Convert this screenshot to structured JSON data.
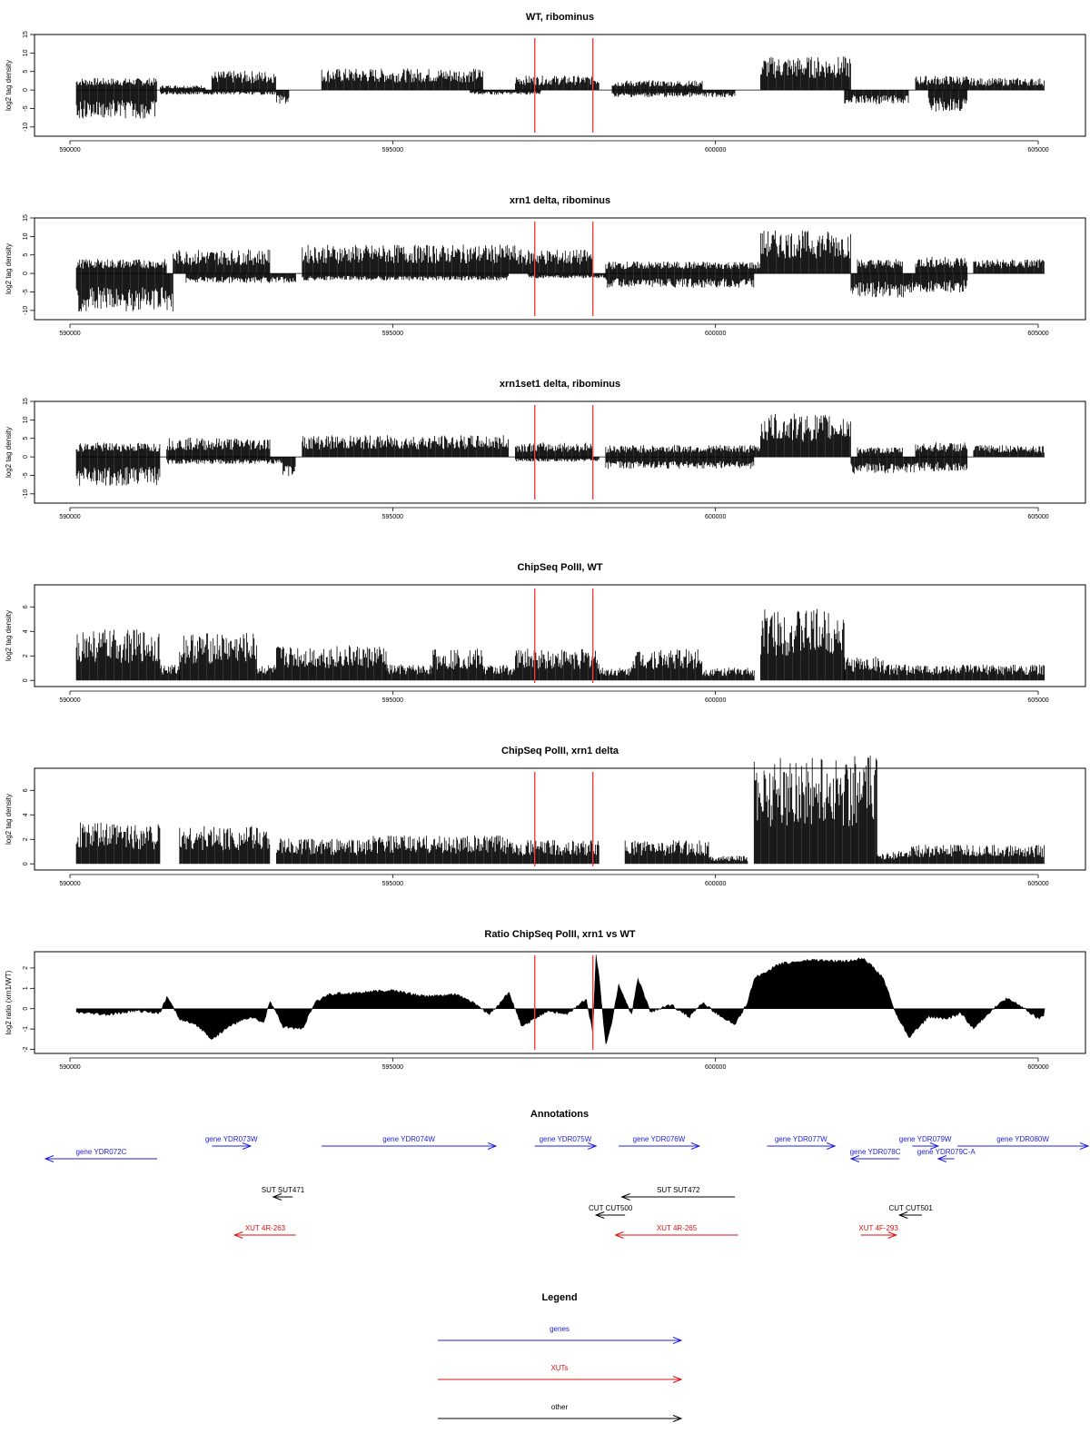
{
  "chart_data": [
    {
      "type": "bar",
      "title": "WT, ribominus",
      "ylabel": "log2 tag density",
      "ylim": [
        -12.5,
        15
      ],
      "yticks": [
        -10,
        -5,
        0,
        5,
        10,
        15
      ],
      "xlim": [
        590000,
        605000
      ],
      "xticks": [
        "590000",
        "595000",
        "600000",
        "605000"
      ],
      "markers": [
        597200,
        598100
      ],
      "forward": [
        {
          "from": 590100,
          "to": 591350,
          "level": 2.5
        },
        {
          "from": 591400,
          "to": 592100,
          "level": 1
        },
        {
          "from": 592200,
          "to": 593200,
          "level": 4
        },
        {
          "from": 593900,
          "to": 596400,
          "level": 4.5
        },
        {
          "from": 596900,
          "to": 598200,
          "level": 3
        },
        {
          "from": 598400,
          "to": 599800,
          "level": 2
        },
        {
          "from": 600700,
          "to": 602100,
          "level": 7
        },
        {
          "from": 603100,
          "to": 603900,
          "level": 3
        },
        {
          "from": 603900,
          "to": 605100,
          "level": 2.5
        }
      ],
      "reverse": [
        {
          "from": 590100,
          "to": 591350,
          "level": -6
        },
        {
          "from": 591400,
          "to": 593200,
          "level": -1
        },
        {
          "from": 593200,
          "to": 593400,
          "level": -3
        },
        {
          "from": 596200,
          "to": 597300,
          "level": -1
        },
        {
          "from": 598400,
          "to": 600300,
          "level": -1.5
        },
        {
          "from": 602000,
          "to": 603000,
          "level": -3
        },
        {
          "from": 603300,
          "to": 603900,
          "level": -4.5
        }
      ]
    },
    {
      "type": "bar",
      "title": "xrn1 delta, ribominus",
      "ylabel": "log2 tag density",
      "ylim": [
        -12.5,
        15
      ],
      "yticks": [
        -10,
        -5,
        0,
        5,
        10,
        15
      ],
      "xlim": [
        590000,
        605000
      ],
      "xticks": [
        "590000",
        "595000",
        "600000",
        "605000"
      ],
      "markers": [
        597200,
        598100
      ],
      "forward": [
        {
          "from": 590100,
          "to": 591500,
          "level": 3
        },
        {
          "from": 591600,
          "to": 593100,
          "level": 5
        },
        {
          "from": 593600,
          "to": 596900,
          "level": 6
        },
        {
          "from": 596900,
          "to": 598100,
          "level": 5
        },
        {
          "from": 598300,
          "to": 600700,
          "level": 2.5
        },
        {
          "from": 600700,
          "to": 602100,
          "level": 9
        },
        {
          "from": 602200,
          "to": 602900,
          "level": 3
        },
        {
          "from": 603100,
          "to": 603900,
          "level": 3.5
        },
        {
          "from": 604000,
          "to": 605100,
          "level": 3
        }
      ],
      "reverse": [
        {
          "from": 590100,
          "to": 591600,
          "level": -8
        },
        {
          "from": 591800,
          "to": 593500,
          "level": -2
        },
        {
          "from": 593600,
          "to": 596800,
          "level": -1.5
        },
        {
          "from": 597100,
          "to": 598300,
          "level": -1
        },
        {
          "from": 598300,
          "to": 600600,
          "level": -3
        },
        {
          "from": 602100,
          "to": 603000,
          "level": -5
        },
        {
          "from": 603000,
          "to": 603900,
          "level": -4
        }
      ]
    },
    {
      "type": "bar",
      "title": "xrn1set1 delta, ribominus",
      "ylabel": "log2 tag density",
      "ylim": [
        -12.5,
        15
      ],
      "yticks": [
        -10,
        -5,
        0,
        5,
        10,
        15
      ],
      "xlim": [
        590000,
        605000
      ],
      "xticks": [
        "590000",
        "595000",
        "600000",
        "605000"
      ],
      "markers": [
        597200,
        598100
      ],
      "forward": [
        {
          "from": 590100,
          "to": 591400,
          "level": 3
        },
        {
          "from": 591500,
          "to": 593100,
          "level": 4
        },
        {
          "from": 593600,
          "to": 596800,
          "level": 4.5
        },
        {
          "from": 596900,
          "to": 598100,
          "level": 3
        },
        {
          "from": 598300,
          "to": 600700,
          "level": 2.5
        },
        {
          "from": 600700,
          "to": 602100,
          "level": 9
        },
        {
          "from": 602200,
          "to": 602900,
          "level": 2
        },
        {
          "from": 603100,
          "to": 603900,
          "level": 3
        },
        {
          "from": 604000,
          "to": 605100,
          "level": 2.5
        }
      ],
      "reverse": [
        {
          "from": 590100,
          "to": 591400,
          "level": -6
        },
        {
          "from": 591500,
          "to": 593300,
          "level": -1.5
        },
        {
          "from": 593300,
          "to": 593500,
          "level": -4
        },
        {
          "from": 596900,
          "to": 598200,
          "level": -1
        },
        {
          "from": 598300,
          "to": 600600,
          "level": -2.5
        },
        {
          "from": 602100,
          "to": 603100,
          "level": -3.5
        },
        {
          "from": 603100,
          "to": 603900,
          "level": -3
        }
      ]
    },
    {
      "type": "bar",
      "title": "ChipSeq PolII, WT",
      "ylabel": "log2 tag density",
      "ylim": [
        -0.5,
        7.8
      ],
      "yticks": [
        0,
        2,
        4,
        6
      ],
      "xlim": [
        590000,
        605000
      ],
      "xticks": [
        "590000",
        "595000",
        "600000",
        "605000"
      ],
      "markers": [
        597200,
        598100
      ],
      "forward": [
        {
          "from": 590100,
          "to": 591400,
          "level": 3.2
        },
        {
          "from": 591400,
          "to": 591700,
          "level": 1
        },
        {
          "from": 591700,
          "to": 592900,
          "level": 3
        },
        {
          "from": 592900,
          "to": 593200,
          "level": 1
        },
        {
          "from": 593200,
          "to": 594900,
          "level": 2.2
        },
        {
          "from": 594900,
          "to": 595600,
          "level": 1
        },
        {
          "from": 595600,
          "to": 596400,
          "level": 2
        },
        {
          "from": 596400,
          "to": 596900,
          "level": 1
        },
        {
          "from": 596900,
          "to": 598200,
          "level": 2
        },
        {
          "from": 598200,
          "to": 598700,
          "level": 0.8
        },
        {
          "from": 598700,
          "to": 599800,
          "level": 2
        },
        {
          "from": 599800,
          "to": 600600,
          "level": 0.8
        },
        {
          "from": 600700,
          "to": 602000,
          "level": 4.5
        },
        {
          "from": 602000,
          "to": 602600,
          "level": 1.5
        },
        {
          "from": 602600,
          "to": 605100,
          "level": 1
        }
      ],
      "reverse": []
    },
    {
      "type": "bar",
      "title": "ChipSeq PolII, xrn1 delta",
      "ylabel": "log2 tag density",
      "ylim": [
        -0.5,
        7.8
      ],
      "yticks": [
        0,
        2,
        4,
        6
      ],
      "xlim": [
        590000,
        605000
      ],
      "xticks": [
        "590000",
        "595000",
        "600000",
        "605000"
      ],
      "markers": [
        597200,
        598100
      ],
      "forward": [
        {
          "from": 590100,
          "to": 591400,
          "level": 2.6
        },
        {
          "from": 591700,
          "to": 593100,
          "level": 2.4
        },
        {
          "from": 593200,
          "to": 594700,
          "level": 1.6
        },
        {
          "from": 594700,
          "to": 596900,
          "level": 1.8
        },
        {
          "from": 596900,
          "to": 598200,
          "level": 1.5
        },
        {
          "from": 598600,
          "to": 599900,
          "level": 1.5
        },
        {
          "from": 599900,
          "to": 600500,
          "level": 0.5
        },
        {
          "from": 600600,
          "to": 602500,
          "level": 6.8
        },
        {
          "from": 602500,
          "to": 603000,
          "level": 0.8
        },
        {
          "from": 603000,
          "to": 605100,
          "level": 1.2
        }
      ],
      "reverse": []
    },
    {
      "type": "area",
      "title": "Ratio ChipSeq PolII, xrn1 vs WT",
      "ylabel": "log2 ratio (xrn1/WT)",
      "ylim": [
        -2.2,
        2.8
      ],
      "yticks": [
        -2,
        -1,
        0,
        1,
        2
      ],
      "xlim": [
        590000,
        605000
      ],
      "xticks": [
        "590000",
        "595000",
        "600000",
        "605000"
      ],
      "markers": [
        597200,
        598100
      ],
      "x": [
        590100,
        590600,
        591000,
        591400,
        591500,
        591700,
        592000,
        592200,
        592500,
        592800,
        593000,
        593100,
        593300,
        593600,
        593800,
        594000,
        594500,
        595000,
        595500,
        596000,
        596300,
        596500,
        596800,
        597000,
        597200,
        597400,
        597700,
        598000,
        598100,
        598150,
        598200,
        598300,
        598400,
        598500,
        598700,
        598800,
        599000,
        599300,
        599600,
        599800,
        600000,
        600300,
        600500,
        600600,
        601000,
        601500,
        602000,
        602300,
        602600,
        602800,
        603000,
        603300,
        603600,
        603800,
        604000,
        604200,
        604500,
        604700,
        605000,
        605100
      ],
      "values": [
        -0.2,
        -0.3,
        -0.1,
        -0.2,
        0.6,
        -0.5,
        -0.9,
        -1.5,
        -0.8,
        -0.4,
        -0.7,
        0.4,
        -0.9,
        -1.0,
        0.3,
        0.7,
        0.8,
        0.9,
        0.6,
        0.7,
        0.2,
        -0.3,
        0.8,
        -0.9,
        -0.5,
        -0.1,
        -0.3,
        0.5,
        -1.2,
        2.6,
        1.5,
        -1.8,
        -0.6,
        1.2,
        -0.3,
        1.5,
        -0.2,
        0.2,
        -0.4,
        0.3,
        -0.2,
        -0.8,
        0.3,
        1.5,
        2.2,
        2.4,
        2.3,
        2.5,
        1.5,
        -0.3,
        -1.4,
        -0.4,
        -0.5,
        -0.2,
        -1.0,
        -0.3,
        0.5,
        0.2,
        -0.5,
        -0.3
      ]
    }
  ],
  "annotations": {
    "title": "Annotations",
    "xlim": [
      590000,
      605000
    ],
    "items": [
      {
        "label": "gene YDR072C",
        "from": 591350,
        "to": 589600,
        "row": 1,
        "kind": "gene"
      },
      {
        "label": "gene YDR073W",
        "from": 592200,
        "to": 592800,
        "row": 0,
        "kind": "gene"
      },
      {
        "label": "gene YDR074W",
        "from": 593900,
        "to": 596600,
        "row": 0,
        "kind": "gene"
      },
      {
        "label": "gene YDR075W",
        "from": 597200,
        "to": 598150,
        "row": 0,
        "kind": "gene"
      },
      {
        "label": "gene YDR076W",
        "from": 598500,
        "to": 599750,
        "row": 0,
        "kind": "gene"
      },
      {
        "label": "gene YDR077W",
        "from": 600800,
        "to": 601850,
        "row": 0,
        "kind": "gene"
      },
      {
        "label": "gene YDR078C",
        "from": 602850,
        "to": 602100,
        "row": 1,
        "kind": "gene"
      },
      {
        "label": "gene YDR079W",
        "from": 603050,
        "to": 603450,
        "row": 0,
        "kind": "gene"
      },
      {
        "label": "gene YDR079C-A",
        "from": 603700,
        "to": 603450,
        "row": 1,
        "kind": "gene"
      },
      {
        "label": "gene YDR080W",
        "from": 603750,
        "to": 605900,
        "row": 0,
        "kind": "gene"
      },
      {
        "label": "SUT SUT471",
        "from": 593450,
        "to": 593150,
        "row": 2,
        "kind": "other"
      },
      {
        "label": "SUT SUT472",
        "from": 600300,
        "to": 598550,
        "row": 2,
        "kind": "other"
      },
      {
        "label": "CUT CUT500",
        "from": 598600,
        "to": 598150,
        "row": 3,
        "kind": "other"
      },
      {
        "label": "CUT CUT501",
        "from": 603200,
        "to": 602850,
        "row": 3,
        "kind": "other"
      },
      {
        "label": "XUT 4R-263",
        "from": 593500,
        "to": 592550,
        "row": 4,
        "kind": "xut"
      },
      {
        "label": "XUT 4R-265",
        "from": 600350,
        "to": 598450,
        "row": 4,
        "kind": "xut"
      },
      {
        "label": "XUT 4F-293",
        "from": 602250,
        "to": 602800,
        "row": 4,
        "kind": "xut"
      }
    ]
  },
  "legend": {
    "title": "Legend",
    "items": [
      {
        "label": "genes",
        "kind": "gene"
      },
      {
        "label": "XUTs",
        "kind": "xut"
      },
      {
        "label": "other",
        "kind": "other"
      }
    ]
  },
  "colors": {
    "gene": "#2020dd",
    "xut": "#dd1111",
    "other": "#000000",
    "marker": "#ff3b3b",
    "bars": "#000000"
  }
}
